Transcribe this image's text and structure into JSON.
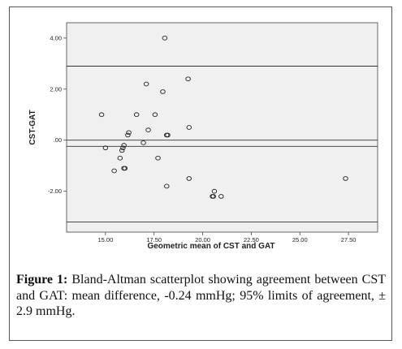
{
  "chart_data": {
    "type": "scatter",
    "title": "",
    "xlabel": "Geometric mean of CST and GAT",
    "ylabel": "CST-GAT",
    "xlim": [
      13.0,
      29.0
    ],
    "ylim": [
      -3.6,
      4.6
    ],
    "xticks": [
      15.0,
      17.5,
      20.0,
      22.5,
      25.0,
      27.5
    ],
    "xtick_labels": [
      "15.00",
      "17.50",
      "20.00",
      "22.50",
      "25.00",
      "27.50"
    ],
    "yticks": [
      4.0,
      2.0,
      0.0,
      -2.0
    ],
    "ytick_labels": [
      "4.00",
      "2.00",
      ".00",
      "-2.00"
    ],
    "grid": false,
    "reference_lines": [
      2.9,
      0.0,
      -0.24,
      -3.2
    ],
    "points": [
      {
        "x": 18.05,
        "y": 4.0
      },
      {
        "x": 17.1,
        "y": 2.2
      },
      {
        "x": 19.25,
        "y": 2.4
      },
      {
        "x": 17.95,
        "y": 1.9
      },
      {
        "x": 14.8,
        "y": 1.0
      },
      {
        "x": 16.6,
        "y": 1.0
      },
      {
        "x": 17.55,
        "y": 1.0
      },
      {
        "x": 19.3,
        "y": 0.5
      },
      {
        "x": 17.2,
        "y": 0.4
      },
      {
        "x": 16.2,
        "y": 0.3
      },
      {
        "x": 16.15,
        "y": 0.2
      },
      {
        "x": 18.15,
        "y": 0.2
      },
      {
        "x": 18.2,
        "y": 0.2
      },
      {
        "x": 16.95,
        "y": -0.1
      },
      {
        "x": 15.0,
        "y": -0.3
      },
      {
        "x": 15.95,
        "y": -0.2
      },
      {
        "x": 15.9,
        "y": -0.3
      },
      {
        "x": 15.85,
        "y": -0.4
      },
      {
        "x": 15.75,
        "y": -0.7
      },
      {
        "x": 17.7,
        "y": -0.7
      },
      {
        "x": 15.45,
        "y": -1.2
      },
      {
        "x": 15.95,
        "y": -1.1
      },
      {
        "x": 16.0,
        "y": -1.1
      },
      {
        "x": 19.3,
        "y": -1.5
      },
      {
        "x": 27.35,
        "y": -1.5
      },
      {
        "x": 18.15,
        "y": -1.8
      },
      {
        "x": 20.6,
        "y": -2.0
      },
      {
        "x": 20.5,
        "y": -2.2
      },
      {
        "x": 20.55,
        "y": -2.2
      },
      {
        "x": 20.95,
        "y": -2.2
      }
    ],
    "colors": {
      "point_stroke": "#222222",
      "plot_background": "#f0f0f0",
      "line": "#333333"
    }
  },
  "caption": {
    "label": "Figure 1:",
    "text": " Bland-Altman scatterplot showing agreement between CST and GAT: mean difference, -0.24 mmHg; 95% limits of agreement, ± 2.9 mmHg."
  }
}
